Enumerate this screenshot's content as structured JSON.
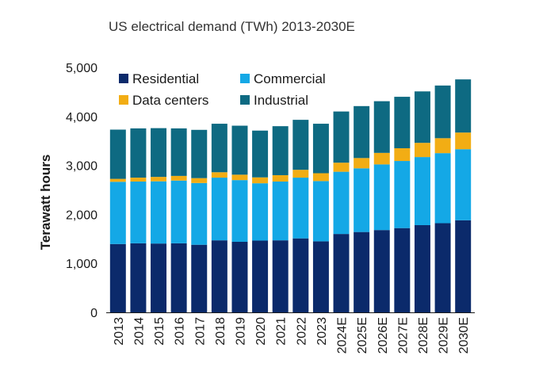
{
  "chart_data": {
    "type": "bar",
    "stacked": true,
    "title": "US electrical demand (TWh) 2013-2030E",
    "xlabel": "",
    "ylabel": "Terawatt hours",
    "ylim": [
      0,
      5000
    ],
    "yticks": [
      0,
      1000,
      2000,
      3000,
      4000,
      5000
    ],
    "ytick_labels": [
      "0",
      "1,000",
      "2,000",
      "3,000",
      "4,000",
      "5,000"
    ],
    "categories": [
      "2013",
      "2014",
      "2015",
      "2016",
      "2017",
      "2018",
      "2019",
      "2020",
      "2021",
      "2022",
      "2023",
      "2024E",
      "2025E",
      "2026E",
      "2027E",
      "2028E",
      "2029E",
      "2030E"
    ],
    "series": [
      {
        "name": "Residential",
        "color": "#0b2a6b",
        "values": [
          1395,
          1410,
          1405,
          1410,
          1380,
          1470,
          1440,
          1465,
          1470,
          1510,
          1450,
          1600,
          1640,
          1680,
          1720,
          1780,
          1820,
          1880
        ]
      },
      {
        "name": "Commercial",
        "color": "#14a8e6",
        "values": [
          1270,
          1260,
          1270,
          1280,
          1260,
          1280,
          1260,
          1170,
          1200,
          1240,
          1230,
          1270,
          1300,
          1340,
          1370,
          1390,
          1430,
          1450
        ]
      },
      {
        "name": "Data centers",
        "color": "#f2ad14",
        "values": [
          60,
          80,
          90,
          95,
          100,
          110,
          110,
          120,
          130,
          160,
          160,
          185,
          210,
          235,
          260,
          290,
          305,
          340
        ]
      },
      {
        "name": "Industrial",
        "color": "#0e6a82",
        "values": [
          1005,
          1005,
          995,
          970,
          985,
          990,
          1000,
          955,
          1000,
          1020,
          1010,
          1045,
          1060,
          1055,
          1050,
          1050,
          1075,
          1085
        ]
      }
    ],
    "legend": [
      {
        "label": "Residential",
        "color": "#0b2a6b"
      },
      {
        "label": "Commercial",
        "color": "#14a8e6"
      },
      {
        "label": "Data centers",
        "color": "#f2ad14"
      },
      {
        "label": "Industrial",
        "color": "#0e6a82"
      }
    ],
    "legend_position": "top-left",
    "grid": false
  }
}
